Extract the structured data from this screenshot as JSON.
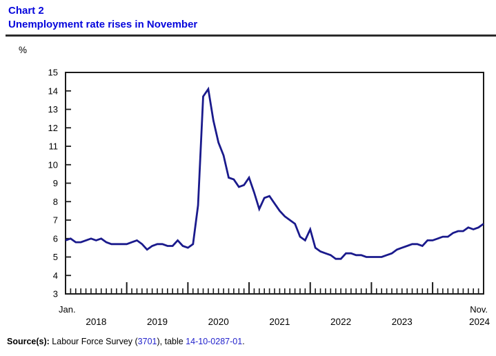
{
  "header": {
    "chart_label": "Chart 2",
    "title": "Unemployment rate rises in November",
    "title_color": "#0505dc"
  },
  "chart_data": {
    "type": "line",
    "title": "Unemployment rate rises in November",
    "unit_label": "%",
    "x_start_label": "Jan.",
    "x_end_label": "Nov.",
    "year_labels": [
      "2018",
      "2019",
      "2020",
      "2021",
      "2022",
      "2023",
      "2024"
    ],
    "x_range": [
      "2018-01",
      "2024-11"
    ],
    "ylim": [
      3,
      15
    ],
    "y_ticks": [
      3,
      4,
      5,
      6,
      7,
      8,
      9,
      10,
      11,
      12,
      13,
      14,
      15
    ],
    "grid": "off",
    "legend": "none",
    "line_color": "#1a1a8c",
    "axis_color": "#1a1a1a",
    "series": [
      {
        "name": "Unemployment rate (%)",
        "start_month": "2018-01",
        "end_month": "2024-11",
        "values": [
          5.9,
          6.0,
          5.8,
          5.8,
          5.9,
          6.0,
          5.9,
          6.0,
          5.8,
          5.7,
          5.7,
          5.7,
          5.7,
          5.8,
          5.9,
          5.7,
          5.4,
          5.6,
          5.7,
          5.7,
          5.6,
          5.6,
          5.9,
          5.6,
          5.5,
          5.7,
          7.8,
          13.7,
          14.1,
          12.4,
          11.2,
          10.5,
          9.3,
          9.2,
          8.8,
          8.9,
          9.3,
          8.5,
          7.6,
          8.2,
          8.3,
          7.9,
          7.5,
          7.2,
          7.0,
          6.8,
          6.1,
          5.9,
          6.5,
          5.5,
          5.3,
          5.2,
          5.1,
          4.9,
          4.9,
          5.2,
          5.2,
          5.1,
          5.1,
          5.0,
          5.0,
          5.0,
          5.0,
          5.1,
          5.2,
          5.4,
          5.5,
          5.6,
          5.7,
          5.7,
          5.6,
          5.9,
          5.9,
          6.0,
          6.1,
          6.1,
          6.3,
          6.4,
          6.4,
          6.6,
          6.5,
          6.6,
          6.8
        ]
      }
    ]
  },
  "source": {
    "prefix": "Source(s):",
    "seg1": " Labour Force Survey (",
    "link1": "3701",
    "seg2": "), table ",
    "link2": "14-10-0287-01",
    "seg3": "."
  }
}
